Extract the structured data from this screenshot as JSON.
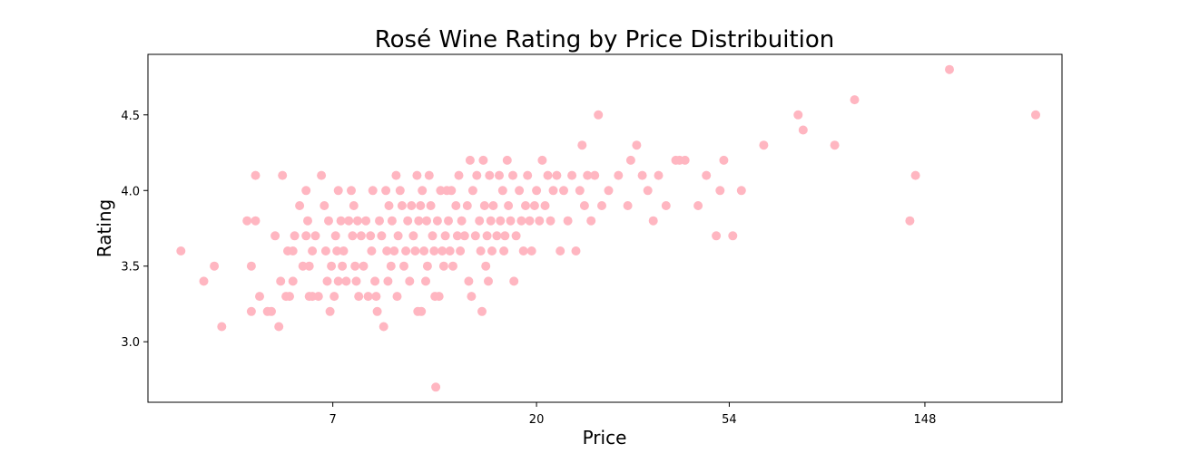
{
  "chart_data": {
    "type": "scatter",
    "title": "Rosé Wine Rating by Price Distribuition",
    "xlabel": "Price",
    "ylabel": "Rating",
    "x_scale": "log",
    "xlim": [
      2.7,
      300
    ],
    "ylim": [
      2.6,
      4.9
    ],
    "x_ticks": [
      7,
      20,
      54,
      148
    ],
    "x_tick_labels": [
      "7",
      "20",
      "54",
      "148"
    ],
    "y_ticks": [
      3.0,
      3.5,
      4.0,
      4.5
    ],
    "y_tick_labels": [
      "3.0",
      "3.5",
      "4.0",
      "4.5"
    ],
    "grid": false,
    "legend": "none",
    "marker_color": "#ffb6c1",
    "series": [
      {
        "points": [
          [
            3.2,
            3.6
          ],
          [
            3.6,
            3.4
          ],
          [
            3.8,
            3.5
          ],
          [
            3.95,
            3.1
          ],
          [
            4.5,
            3.8
          ],
          [
            4.6,
            3.5
          ],
          [
            4.6,
            3.2
          ],
          [
            4.7,
            3.8
          ],
          [
            4.7,
            4.1
          ],
          [
            4.8,
            3.3
          ],
          [
            5.0,
            3.2
          ],
          [
            5.1,
            3.2
          ],
          [
            5.2,
            3.7
          ],
          [
            5.3,
            3.1
          ],
          [
            5.35,
            3.4
          ],
          [
            5.4,
            4.1
          ],
          [
            5.5,
            3.3
          ],
          [
            5.55,
            3.6
          ],
          [
            5.6,
            3.3
          ],
          [
            5.7,
            3.6
          ],
          [
            5.7,
            3.4
          ],
          [
            5.75,
            3.7
          ],
          [
            5.9,
            3.9
          ],
          [
            6.0,
            3.5
          ],
          [
            6.1,
            3.7
          ],
          [
            6.1,
            4.0
          ],
          [
            6.15,
            3.8
          ],
          [
            6.2,
            3.5
          ],
          [
            6.2,
            3.3
          ],
          [
            6.3,
            3.6
          ],
          [
            6.3,
            3.3
          ],
          [
            6.4,
            3.7
          ],
          [
            6.5,
            3.3
          ],
          [
            6.6,
            4.1
          ],
          [
            6.7,
            3.9
          ],
          [
            6.75,
            3.6
          ],
          [
            6.8,
            3.4
          ],
          [
            6.85,
            3.8
          ],
          [
            6.9,
            3.2
          ],
          [
            6.95,
            3.5
          ],
          [
            7.05,
            3.3
          ],
          [
            7.1,
            3.7
          ],
          [
            7.15,
            3.6
          ],
          [
            7.2,
            4.0
          ],
          [
            7.2,
            3.4
          ],
          [
            7.3,
            3.8
          ],
          [
            7.35,
            3.5
          ],
          [
            7.4,
            3.6
          ],
          [
            7.5,
            3.4
          ],
          [
            7.6,
            3.8
          ],
          [
            7.7,
            4.0
          ],
          [
            7.75,
            3.7
          ],
          [
            7.8,
            3.9
          ],
          [
            7.85,
            3.5
          ],
          [
            7.9,
            3.4
          ],
          [
            7.95,
            3.8
          ],
          [
            8.0,
            3.3
          ],
          [
            8.1,
            3.7
          ],
          [
            8.2,
            3.5
          ],
          [
            8.3,
            3.8
          ],
          [
            8.4,
            3.3
          ],
          [
            8.5,
            3.7
          ],
          [
            8.55,
            3.6
          ],
          [
            8.6,
            4.0
          ],
          [
            8.7,
            3.4
          ],
          [
            8.75,
            3.3
          ],
          [
            8.8,
            3.2
          ],
          [
            8.9,
            3.8
          ],
          [
            9.0,
            3.7
          ],
          [
            9.1,
            3.1
          ],
          [
            9.2,
            4.0
          ],
          [
            9.25,
            3.6
          ],
          [
            9.3,
            3.4
          ],
          [
            9.35,
            3.9
          ],
          [
            9.45,
            3.5
          ],
          [
            9.5,
            3.8
          ],
          [
            9.6,
            3.6
          ],
          [
            9.7,
            4.1
          ],
          [
            9.75,
            3.3
          ],
          [
            9.8,
            3.7
          ],
          [
            9.9,
            4.0
          ],
          [
            10.0,
            3.9
          ],
          [
            10.1,
            3.5
          ],
          [
            10.2,
            3.6
          ],
          [
            10.3,
            3.8
          ],
          [
            10.4,
            3.4
          ],
          [
            10.5,
            3.9
          ],
          [
            10.6,
            3.7
          ],
          [
            10.7,
            3.6
          ],
          [
            10.8,
            4.1
          ],
          [
            10.85,
            3.2
          ],
          [
            10.9,
            3.8
          ],
          [
            11.0,
            3.9
          ],
          [
            11.05,
            3.2
          ],
          [
            11.1,
            4.0
          ],
          [
            11.2,
            3.6
          ],
          [
            11.3,
            3.4
          ],
          [
            11.35,
            3.8
          ],
          [
            11.4,
            3.5
          ],
          [
            11.5,
            4.1
          ],
          [
            11.6,
            3.9
          ],
          [
            11.7,
            3.7
          ],
          [
            11.8,
            3.6
          ],
          [
            11.85,
            3.3
          ],
          [
            11.9,
            2.7
          ],
          [
            12.0,
            3.8
          ],
          [
            12.1,
            3.3
          ],
          [
            12.2,
            4.0
          ],
          [
            12.3,
            3.6
          ],
          [
            12.4,
            3.5
          ],
          [
            12.5,
            3.7
          ],
          [
            12.6,
            4.0
          ],
          [
            12.7,
            3.8
          ],
          [
            12.8,
            3.6
          ],
          [
            12.9,
            4.0
          ],
          [
            13.0,
            3.5
          ],
          [
            13.2,
            3.9
          ],
          [
            13.3,
            3.7
          ],
          [
            13.4,
            4.1
          ],
          [
            13.5,
            3.6
          ],
          [
            13.6,
            3.8
          ],
          [
            13.8,
            3.7
          ],
          [
            14.0,
            3.9
          ],
          [
            14.1,
            3.4
          ],
          [
            14.2,
            4.2
          ],
          [
            14.3,
            3.3
          ],
          [
            14.4,
            4.0
          ],
          [
            14.6,
            3.7
          ],
          [
            14.7,
            4.1
          ],
          [
            14.9,
            3.8
          ],
          [
            15.0,
            3.6
          ],
          [
            15.1,
            3.2
          ],
          [
            15.2,
            4.2
          ],
          [
            15.3,
            3.9
          ],
          [
            15.4,
            3.5
          ],
          [
            15.5,
            3.7
          ],
          [
            15.6,
            3.4
          ],
          [
            15.7,
            4.1
          ],
          [
            15.8,
            3.8
          ],
          [
            15.9,
            3.6
          ],
          [
            16.0,
            3.9
          ],
          [
            16.3,
            3.7
          ],
          [
            16.5,
            4.1
          ],
          [
            16.6,
            3.8
          ],
          [
            16.8,
            4.0
          ],
          [
            16.9,
            3.6
          ],
          [
            17.0,
            3.7
          ],
          [
            17.2,
            4.2
          ],
          [
            17.3,
            3.9
          ],
          [
            17.5,
            3.8
          ],
          [
            17.7,
            4.1
          ],
          [
            17.8,
            3.4
          ],
          [
            18.0,
            3.7
          ],
          [
            18.3,
            4.0
          ],
          [
            18.5,
            3.8
          ],
          [
            18.7,
            3.6
          ],
          [
            18.9,
            3.9
          ],
          [
            19.1,
            4.1
          ],
          [
            19.3,
            3.8
          ],
          [
            19.5,
            3.6
          ],
          [
            19.8,
            3.9
          ],
          [
            20.0,
            4.0
          ],
          [
            20.3,
            3.8
          ],
          [
            20.6,
            4.2
          ],
          [
            20.9,
            3.9
          ],
          [
            21.2,
            4.1
          ],
          [
            21.5,
            3.8
          ],
          [
            21.8,
            4.0
          ],
          [
            22.2,
            4.1
          ],
          [
            22.6,
            3.6
          ],
          [
            23.0,
            4.0
          ],
          [
            23.5,
            3.8
          ],
          [
            24.0,
            4.1
          ],
          [
            24.5,
            3.6
          ],
          [
            25.0,
            4.0
          ],
          [
            25.3,
            4.3
          ],
          [
            25.6,
            3.9
          ],
          [
            26.0,
            4.1
          ],
          [
            26.5,
            3.8
          ],
          [
            27.0,
            4.1
          ],
          [
            27.5,
            4.5
          ],
          [
            28.0,
            3.9
          ],
          [
            29.0,
            4.0
          ],
          [
            30.5,
            4.1
          ],
          [
            32.0,
            3.9
          ],
          [
            32.5,
            4.2
          ],
          [
            33.5,
            4.3
          ],
          [
            34.5,
            4.1
          ],
          [
            35.5,
            4.0
          ],
          [
            36.5,
            3.8
          ],
          [
            37.5,
            4.1
          ],
          [
            39.0,
            3.9
          ],
          [
            41.0,
            4.2
          ],
          [
            41.8,
            4.2
          ],
          [
            43.0,
            4.2
          ],
          [
            46.0,
            3.9
          ],
          [
            48.0,
            4.1
          ],
          [
            50.5,
            3.7
          ],
          [
            51.5,
            4.0
          ],
          [
            52.5,
            4.2
          ],
          [
            55.0,
            3.7
          ],
          [
            57.5,
            4.0
          ],
          [
            64.5,
            4.3
          ],
          [
            77.0,
            4.5
          ],
          [
            79.0,
            4.4
          ],
          [
            93.0,
            4.3
          ],
          [
            103.0,
            4.6
          ],
          [
            137.0,
            3.8
          ],
          [
            141.0,
            4.1
          ],
          [
            168.0,
            4.8
          ],
          [
            262.0,
            4.5
          ]
        ]
      }
    ]
  }
}
